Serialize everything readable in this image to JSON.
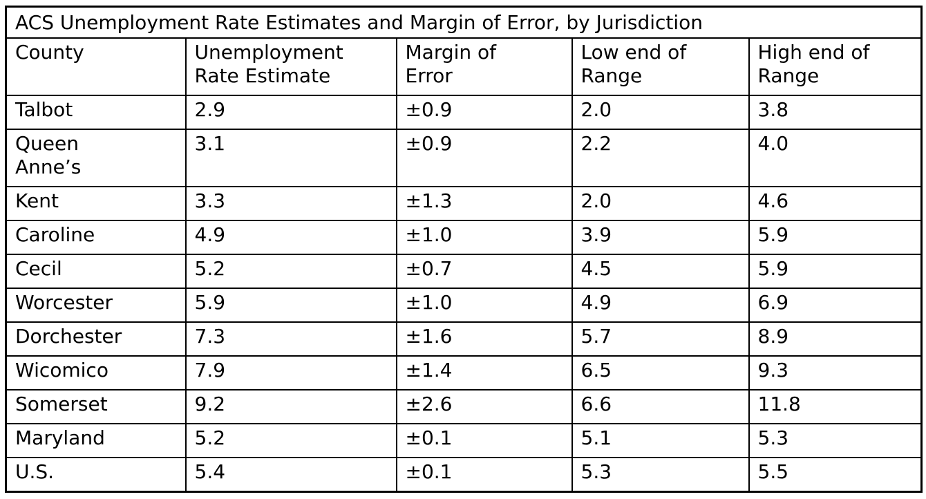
{
  "page": {
    "background_color": "#ffffff",
    "text_color": "#000000",
    "border_color": "#000000"
  },
  "table": {
    "title": "ACS Unemployment Rate Estimates and Margin of Error, by Jurisdiction",
    "columns": [
      "County",
      "Unemployment Rate Estimate",
      "Margin of Error",
      "Low end of Range",
      "High end of Range"
    ],
    "rows": [
      {
        "county": "Talbot",
        "estimate": "2.9",
        "margin": "±0.9",
        "low": "2.0",
        "high": "3.8"
      },
      {
        "county": "Queen Anne’s",
        "estimate": "3.1",
        "margin": "±0.9",
        "low": "2.2",
        "high": "4.0"
      },
      {
        "county": "Kent",
        "estimate": "3.3",
        "margin": "±1.3",
        "low": "2.0",
        "high": "4.6"
      },
      {
        "county": "Caroline",
        "estimate": "4.9",
        "margin": "±1.0",
        "low": "3.9",
        "high": "5.9"
      },
      {
        "county": "Cecil",
        "estimate": "5.2",
        "margin": "±0.7",
        "low": "4.5",
        "high": "5.9"
      },
      {
        "county": "Worcester",
        "estimate": "5.9",
        "margin": "±1.0",
        "low": "4.9",
        "high": "6.9"
      },
      {
        "county": "Dorchester",
        "estimate": "7.3",
        "margin": "±1.6",
        "low": "5.7",
        "high": "8.9"
      },
      {
        "county": "Wicomico",
        "estimate": "7.9",
        "margin": "±1.4",
        "low": "6.5",
        "high": "9.3"
      },
      {
        "county": "Somerset",
        "estimate": "9.2",
        "margin": "±2.6",
        "low": "6.6",
        "high": "11.8"
      },
      {
        "county": "Maryland",
        "estimate": "5.2",
        "margin": "±0.1",
        "low": "5.1",
        "high": "5.3"
      },
      {
        "county": "U.S.",
        "estimate": "5.4",
        "margin": "±0.1",
        "low": "5.3",
        "high": "5.5"
      }
    ]
  },
  "chart_data": {
    "type": "table",
    "title": "ACS Unemployment Rate Estimates and Margin of Error, by Jurisdiction",
    "columns": [
      "County",
      "Unemployment Rate Estimate",
      "Margin of Error",
      "Low end of Range",
      "High end of Range"
    ],
    "rows": [
      [
        "Talbot",
        2.9,
        0.9,
        2.0,
        3.8
      ],
      [
        "Queen Anne’s",
        3.1,
        0.9,
        2.2,
        4.0
      ],
      [
        "Kent",
        3.3,
        1.3,
        2.0,
        4.6
      ],
      [
        "Caroline",
        4.9,
        1.0,
        3.9,
        5.9
      ],
      [
        "Cecil",
        5.2,
        0.7,
        4.5,
        5.9
      ],
      [
        "Worcester",
        5.9,
        1.0,
        4.9,
        6.9
      ],
      [
        "Dorchester",
        7.3,
        1.6,
        5.7,
        8.9
      ],
      [
        "Wicomico",
        7.9,
        1.4,
        6.5,
        9.3
      ],
      [
        "Somerset",
        9.2,
        2.6,
        6.6,
        11.8
      ],
      [
        "Maryland",
        5.2,
        0.1,
        5.1,
        5.3
      ],
      [
        "U.S.",
        5.4,
        0.1,
        5.3,
        5.5
      ]
    ]
  }
}
